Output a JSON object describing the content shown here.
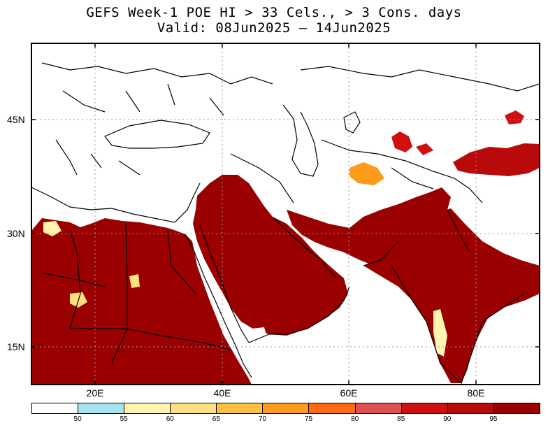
{
  "title": {
    "line1": "GEFS Week-1 POE HI > 33 Cels., > 3 Cons. days",
    "line2": "Valid: 08Jun2025 – 14Jun2025"
  },
  "map": {
    "lon_range": [
      10,
      90
    ],
    "lat_range": [
      10,
      55
    ],
    "lat_ticks": [
      {
        "value": 45,
        "label": "45N"
      },
      {
        "value": 30,
        "label": "30N"
      },
      {
        "value": 15,
        "label": "15N"
      }
    ],
    "lon_ticks": [
      {
        "value": 20,
        "label": "20E"
      },
      {
        "value": 40,
        "label": "40E"
      },
      {
        "value": 60,
        "label": "60E"
      },
      {
        "value": 80,
        "label": "80E"
      }
    ],
    "grid": true
  },
  "colorbar": {
    "colors": [
      "#ffffff",
      "#a8e4f0",
      "#fff4b0",
      "#ffe080",
      "#ffc040",
      "#ff9a1a",
      "#ff6a10",
      "#e05050",
      "#d01010",
      "#b80a0a",
      "#9a0000"
    ],
    "labels": [
      "50",
      "55",
      "60",
      "65",
      "70",
      "75",
      "80",
      "85",
      "90",
      "95"
    ]
  }
}
